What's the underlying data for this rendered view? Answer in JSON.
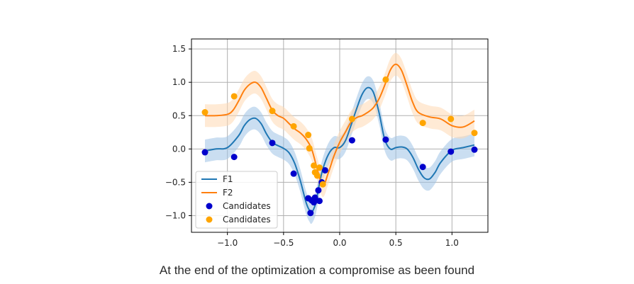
{
  "caption": "At the end of the optimization a compromise as been found",
  "chart_data": {
    "type": "line",
    "title": "",
    "xlabel": "",
    "ylabel": "",
    "xlim": [
      -1.32,
      1.32
    ],
    "ylim": [
      -1.25,
      1.65
    ],
    "xticks": [
      -1.0,
      -0.5,
      0.0,
      0.5,
      1.0
    ],
    "xtick_labels": [
      "−1.0",
      "−0.5",
      "0.0",
      "0.5",
      "1.0"
    ],
    "yticks": [
      1.5,
      1.0,
      0.5,
      0.0,
      -0.5,
      -1.0
    ],
    "ytick_labels": [
      "1.5",
      "1.0",
      "0.5",
      "0.0",
      "−0.5",
      "−1.0"
    ],
    "grid": true,
    "legend_position": "lower-left",
    "series": [
      {
        "name": "F1",
        "kind": "line",
        "color": "#1f77b4",
        "band_color": "#9ec3e6",
        "band_halfwidth": 0.17,
        "x": [
          -1.2,
          -1.1,
          -1.0,
          -0.9,
          -0.85,
          -0.8,
          -0.75,
          -0.7,
          -0.65,
          -0.6,
          -0.55,
          -0.5,
          -0.45,
          -0.4,
          -0.35,
          -0.3,
          -0.27,
          -0.25,
          -0.22,
          -0.2,
          -0.18,
          -0.15,
          -0.1,
          -0.05,
          0.0,
          0.05,
          0.1,
          0.15,
          0.2,
          0.25,
          0.3,
          0.35,
          0.4,
          0.45,
          0.5,
          0.55,
          0.6,
          0.65,
          0.7,
          0.75,
          0.8,
          0.85,
          0.9,
          1.0,
          1.1,
          1.2
        ],
        "values": [
          -0.03,
          0.0,
          0.02,
          0.2,
          0.35,
          0.44,
          0.46,
          0.38,
          0.22,
          0.1,
          0.05,
          0.01,
          -0.06,
          -0.22,
          -0.48,
          -0.8,
          -0.92,
          -0.95,
          -0.85,
          -0.7,
          -0.52,
          -0.3,
          -0.08,
          0.02,
          0.02,
          0.12,
          0.35,
          0.6,
          0.82,
          0.92,
          0.85,
          0.55,
          0.15,
          0.0,
          0.02,
          0.03,
          0.0,
          -0.12,
          -0.3,
          -0.43,
          -0.45,
          -0.35,
          -0.2,
          -0.02,
          0.02,
          0.06
        ]
      },
      {
        "name": "F2",
        "kind": "line",
        "color": "#ff7f0e",
        "band_color": "#ffd8b3",
        "band_halfwidth": 0.17,
        "x": [
          -1.2,
          -1.1,
          -1.0,
          -0.95,
          -0.9,
          -0.85,
          -0.8,
          -0.75,
          -0.7,
          -0.65,
          -0.6,
          -0.55,
          -0.5,
          -0.45,
          -0.4,
          -0.35,
          -0.3,
          -0.25,
          -0.2,
          -0.15,
          -0.1,
          -0.05,
          0.0,
          0.05,
          0.1,
          0.15,
          0.2,
          0.25,
          0.3,
          0.35,
          0.4,
          0.45,
          0.5,
          0.55,
          0.6,
          0.65,
          0.7,
          0.8,
          0.9,
          1.0,
          1.1,
          1.2
        ],
        "values": [
          0.5,
          0.5,
          0.52,
          0.58,
          0.72,
          0.88,
          0.97,
          1.0,
          0.92,
          0.75,
          0.58,
          0.5,
          0.46,
          0.38,
          0.3,
          0.24,
          0.15,
          0.0,
          -0.3,
          -0.55,
          -0.35,
          -0.1,
          0.1,
          0.25,
          0.4,
          0.47,
          0.5,
          0.55,
          0.62,
          0.75,
          0.95,
          1.18,
          1.27,
          1.18,
          0.95,
          0.7,
          0.55,
          0.48,
          0.45,
          0.35,
          0.33,
          0.42
        ]
      },
      {
        "name": "Candidates",
        "kind": "scatter",
        "color": "#0000cc",
        "x": [
          -1.2,
          -0.94,
          -0.6,
          -0.41,
          -0.28,
          -0.26,
          -0.25,
          -0.23,
          -0.22,
          -0.19,
          -0.18,
          -0.16,
          -0.13,
          0.11,
          0.41,
          0.74,
          0.99,
          1.2
        ],
        "values": [
          -0.05,
          -0.12,
          0.09,
          -0.37,
          -0.74,
          -0.96,
          -0.77,
          -0.8,
          -0.73,
          -0.62,
          -0.78,
          -0.5,
          -0.32,
          0.13,
          0.14,
          -0.27,
          -0.04,
          -0.01
        ]
      },
      {
        "name": "Candidates",
        "kind": "scatter",
        "color": "#ffa500",
        "x": [
          -1.2,
          -0.94,
          -0.6,
          -0.41,
          -0.28,
          -0.27,
          -0.23,
          -0.22,
          -0.2,
          -0.18,
          -0.15,
          0.11,
          0.41,
          0.74,
          0.99,
          1.2
        ],
        "values": [
          0.55,
          0.79,
          0.57,
          0.34,
          0.21,
          0.01,
          -0.25,
          -0.35,
          -0.4,
          -0.28,
          -0.53,
          0.45,
          1.04,
          0.39,
          0.45,
          0.24
        ]
      }
    ]
  }
}
